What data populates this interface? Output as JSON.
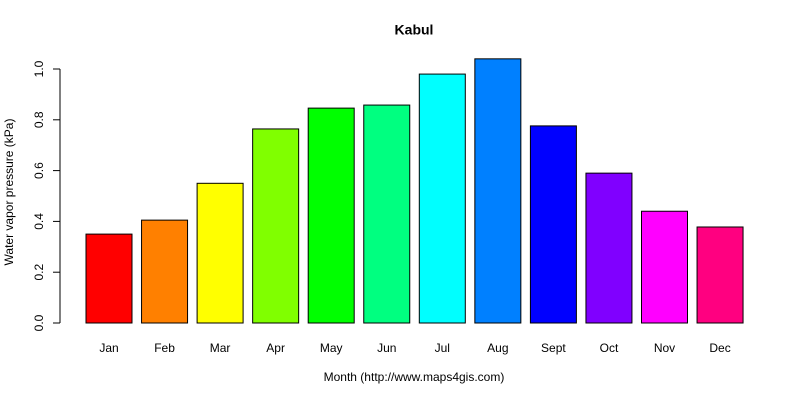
{
  "chart_data": {
    "type": "bar",
    "title": "Kabul",
    "x_label": "Month (http://www.maps4gis.com)",
    "y_label": "Water vapor pressure (kPa)",
    "categories": [
      "Jan",
      "Feb",
      "Mar",
      "Apr",
      "May",
      "Jun",
      "Jul",
      "Aug",
      "Sept",
      "Oct",
      "Nov",
      "Dec"
    ],
    "values": [
      0.35,
      0.405,
      0.55,
      0.764,
      0.846,
      0.858,
      0.98,
      1.04,
      0.776,
      0.59,
      0.44,
      0.378
    ],
    "colors": [
      "#FF0000",
      "#FF8000",
      "#FFFF00",
      "#80FF00",
      "#00FF00",
      "#00FF80",
      "#00FFFF",
      "#0080FF",
      "#0000FF",
      "#8000FF",
      "#FF00FF",
      "#FF0080"
    ],
    "ylim": [
      0,
      1
    ],
    "yticks": [
      {
        "value": 0,
        "label": "0.0"
      },
      0.2,
      0.4,
      0.6,
      0.8,
      {
        "value": 1,
        "label": "1.0"
      }
    ]
  }
}
